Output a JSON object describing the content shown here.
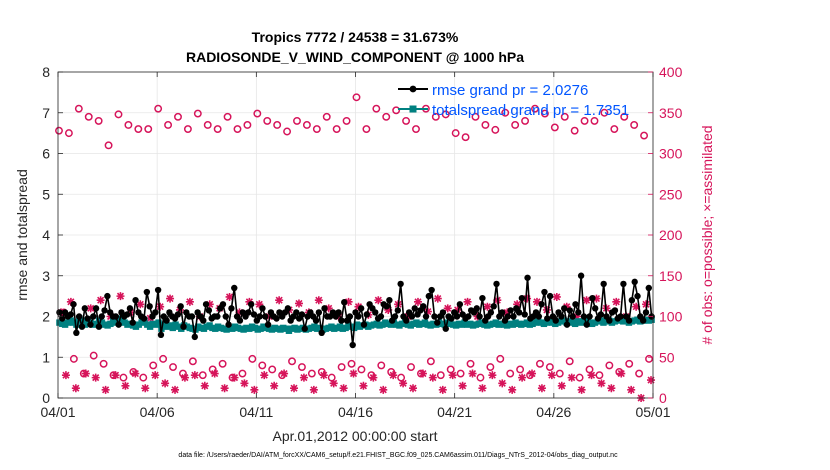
{
  "chart_data": {
    "type": "line",
    "title_line1": "Tropics 7772 / 24538 = 31.673%",
    "title_line2": "RADIOSONDE_V_WIND_COMPONENT @ 1000 hPa",
    "xlabel": "Apr.01,2012 00:00:00 start",
    "ylabel_left": "rmse and totalspread",
    "ylabel_right": "# of obs: o=possible; ×=assimilated",
    "footer": "data file: /Users/raeder/DAI/ATM_forcXX/CAM6_setup/f.e21.FHIST_BGC.f09_025.CAM6assim.011/Diags_NTrS_2012-04/obs_diag_output.nc",
    "x_unit": "day of month (Apr 2012, day 1.0 = 04/01 00Z)",
    "xlim": [
      1,
      31
    ],
    "ylim_left": [
      0,
      8
    ],
    "ylim_right": [
      0,
      400
    ],
    "x_ticks": [
      1,
      6,
      11,
      16,
      21,
      26,
      31
    ],
    "x_tick_labels": [
      "04/01",
      "04/06",
      "04/11",
      "04/16",
      "04/21",
      "04/26",
      "05/01"
    ],
    "y_ticks_left": [
      "0",
      "1",
      "2",
      "3",
      "4",
      "5",
      "6",
      "7",
      "8"
    ],
    "y_ticks_right": [
      "0",
      "50",
      "100",
      "150",
      "200",
      "250",
      "300",
      "350",
      "400"
    ],
    "colors": {
      "rmse": "#000000",
      "spread": "#008080",
      "obs": "#d6145a",
      "legend_text": "#0055ff"
    },
    "legend": [
      "rmse grand pr = 2.0276",
      "totalspread grand pr = 1.7351"
    ],
    "series": [
      {
        "name": "rmse",
        "axis": "left",
        "values": [
          2.1,
          1.95,
          2.1,
          2.0,
          2.05,
          2.3,
          1.6,
          2.0,
          1.75,
          2.2,
          1.95,
          1.8,
          2.0,
          2.2,
          1.75,
          2.0,
          2.15,
          2.5,
          2.1,
          2.0,
          2.0,
          1.8,
          2.1,
          2.0,
          2.05,
          2.2,
          1.85,
          2.4,
          2.1,
          2.0,
          1.95,
          2.6,
          2.25,
          2.0,
          2.1,
          2.65,
          1.55,
          2.0,
          1.9,
          2.1,
          2.0,
          1.95,
          2.05,
          2.25,
          1.75,
          2.1,
          2.0,
          2.0,
          1.5,
          2.1,
          2.0,
          1.9,
          2.3,
          2.15,
          1.95,
          2.0,
          2.0,
          2.2,
          2.3,
          2.0,
          1.8,
          2.2,
          2.7,
          2.0,
          1.9,
          2.1,
          2.0,
          2.1,
          2.3,
          2.05,
          1.9,
          2.0,
          2.2,
          2.0,
          1.8,
          2.1,
          2.0,
          1.95,
          2.1,
          2.0,
          2.1,
          2.2,
          1.9,
          2.0,
          2.1,
          1.95,
          2.05,
          1.7,
          2.0,
          2.1,
          2.0,
          1.9,
          2.1,
          1.6,
          2.2,
          2.0,
          2.0,
          2.1,
          2.0,
          2.1,
          1.9,
          2.35,
          1.9,
          2.0,
          1.3,
          2.1,
          2.0,
          2.2,
          1.8,
          2.05,
          2.3,
          2.2,
          2.1,
          1.95,
          2.0,
          2.3,
          2.25,
          2.4,
          1.9,
          2.0,
          2.15,
          2.8,
          2.0,
          1.9,
          2.1,
          2.0,
          2.2,
          2.05,
          2.15,
          2.25,
          2.0,
          2.5,
          2.65,
          2.0,
          1.85,
          2.0,
          2.1,
          1.7,
          2.0,
          1.95,
          2.1,
          2.0,
          2.3,
          2.05,
          1.95,
          2.0,
          2.15,
          2.1,
          2.2,
          2.0,
          2.45,
          1.9,
          2.0,
          2.1,
          2.25,
          2.8,
          2.0,
          2.1,
          1.9,
          2.0,
          2.15,
          2.0,
          2.2,
          2.1,
          2.45,
          2.05,
          2.95,
          1.95,
          2.0,
          2.1,
          2.0,
          2.3,
          2.6,
          1.95,
          2.5,
          2.0,
          1.9,
          2.1,
          2.0,
          2.2,
          1.8,
          2.15,
          2.0,
          2.3,
          2.1,
          3.0,
          2.0,
          1.8,
          2.0,
          2.45,
          2.2,
          1.95,
          2.05,
          2.8,
          2.0,
          1.9,
          2.1,
          2.15,
          1.95,
          2.0,
          2.8,
          2.0,
          1.9,
          2.4,
          2.85,
          2.5,
          2.0,
          1.9,
          2.1,
          2.7,
          2.0
        ]
      },
      {
        "name": "totalspread",
        "axis": "left",
        "values": [
          1.85,
          1.82,
          1.8,
          1.85,
          1.9,
          1.85,
          1.8,
          1.95,
          1.9,
          1.8,
          1.88,
          1.85,
          1.8,
          1.82,
          1.9,
          1.85,
          1.8,
          1.78,
          1.82,
          1.9,
          1.85,
          1.95,
          1.9,
          1.85,
          1.8,
          1.82,
          1.78,
          1.75,
          1.8,
          1.85,
          1.9,
          1.8,
          1.75,
          1.82,
          1.8,
          1.85,
          1.7,
          1.8,
          1.75,
          1.78,
          1.72,
          1.8,
          1.75,
          1.7,
          1.78,
          1.75,
          1.72,
          1.7,
          1.68,
          1.75,
          1.72,
          1.7,
          1.75,
          1.78,
          1.72,
          1.7,
          1.75,
          1.72,
          1.7,
          1.68,
          1.72,
          1.7,
          1.75,
          1.72,
          1.7,
          1.68,
          1.72,
          1.7,
          1.75,
          1.72,
          1.68,
          1.7,
          1.75,
          1.72,
          1.7,
          1.68,
          1.72,
          1.7,
          1.68,
          1.72,
          1.7,
          1.65,
          1.7,
          1.72,
          1.68,
          1.7,
          1.72,
          1.68,
          1.7,
          1.72,
          1.75,
          1.7,
          1.72,
          1.68,
          1.7,
          1.72,
          1.75,
          1.7,
          1.72,
          1.75,
          1.7,
          1.72,
          1.78,
          1.75,
          1.72,
          1.8,
          1.75,
          1.78,
          1.8,
          1.75,
          1.78,
          1.8,
          1.82,
          1.78,
          1.8,
          1.85,
          1.82,
          1.8,
          1.85,
          1.8,
          1.78,
          1.82,
          1.85,
          1.8,
          1.78,
          1.82,
          1.85,
          1.8,
          1.82,
          1.85,
          1.8,
          1.78,
          1.82,
          1.8,
          1.85,
          1.82,
          1.8,
          1.85,
          1.82,
          1.8,
          1.78,
          1.82,
          1.8,
          1.85,
          1.8,
          1.82,
          1.78,
          1.8,
          1.82,
          1.85,
          1.8,
          1.78,
          1.8,
          1.82,
          1.85,
          1.8,
          1.82,
          1.8,
          1.78,
          1.82,
          1.8,
          1.85,
          1.82,
          1.8,
          1.82,
          1.85,
          1.8,
          1.82,
          1.85,
          1.88,
          1.85,
          1.82,
          1.85,
          1.88,
          1.85,
          1.82,
          1.85,
          1.88,
          1.9,
          1.85,
          1.88,
          1.85,
          1.82,
          1.88,
          1.85,
          1.88,
          1.9,
          1.85,
          1.82,
          1.85,
          1.88,
          1.9,
          1.85,
          1.88,
          1.9,
          1.85,
          1.88,
          1.9,
          1.92,
          1.88,
          1.9,
          1.85,
          1.88,
          1.9,
          1.92,
          1.88,
          1.9,
          1.92,
          1.9,
          1.92
        ]
      },
      {
        "name": "obs_possible",
        "axis": "right",
        "x": [
          1.05,
          1.55,
          2.05,
          2.55,
          3.05,
          3.55,
          4.05,
          4.55,
          5.05,
          5.55,
          6.05,
          6.55,
          7.05,
          7.55,
          8.05,
          8.55,
          9.05,
          9.55,
          10.05,
          10.55,
          11.05,
          11.55,
          12.05,
          12.55,
          13.05,
          13.55,
          14.05,
          14.55,
          15.05,
          15.55,
          16.05,
          16.55,
          17.05,
          17.55,
          18.05,
          18.55,
          19.05,
          19.55,
          20.05,
          20.55,
          21.05,
          21.55,
          22.05,
          22.55,
          23.05,
          23.55,
          24.05,
          24.55,
          25.05,
          25.55,
          26.05,
          26.55,
          27.05,
          27.55,
          28.05,
          28.55,
          29.05,
          29.55,
          30.05,
          30.55,
          1.3,
          1.8,
          2.3,
          2.8,
          3.3,
          3.8,
          4.3,
          4.8,
          5.3,
          5.8,
          6.3,
          6.8,
          7.3,
          7.8,
          8.3,
          8.8,
          9.3,
          9.8,
          10.3,
          10.8,
          11.3,
          11.8,
          12.3,
          12.8,
          13.3,
          13.8,
          14.3,
          14.8,
          15.3,
          15.8,
          16.3,
          16.8,
          17.3,
          17.8,
          18.3,
          18.8,
          19.3,
          19.8,
          20.3,
          20.8,
          21.3,
          21.8,
          22.3,
          22.8,
          23.3,
          23.8,
          24.3,
          24.8,
          25.3,
          25.8,
          26.3,
          26.8,
          27.3,
          27.8,
          28.3,
          28.8,
          29.3,
          29.8,
          30.3,
          30.8
        ],
        "values": [
          328,
          325,
          355,
          345,
          340,
          310,
          348,
          335,
          330,
          330,
          355,
          335,
          345,
          330,
          349,
          335,
          330,
          345,
          330,
          335,
          349,
          340,
          335,
          327,
          340,
          335,
          330,
          345,
          330,
          340,
          369,
          330,
          355,
          345,
          353,
          340,
          330,
          355,
          345,
          348,
          325,
          320,
          345,
          335,
          329,
          350,
          335,
          340,
          355,
          349,
          332,
          345,
          328,
          340,
          340,
          350,
          330,
          345,
          335,
          322,
          105,
          48,
          30,
          52,
          42,
          28,
          25,
          32,
          25,
          40,
          48,
          38,
          30,
          45,
          28,
          35,
          42,
          25,
          30,
          48,
          40,
          35,
          28,
          45,
          38,
          30,
          32,
          25,
          38,
          42,
          35,
          28,
          40,
          32,
          25,
          38,
          30,
          45,
          28,
          35,
          30,
          42,
          25,
          38,
          48,
          30,
          35,
          28,
          42,
          38,
          30,
          45,
          25,
          35,
          28,
          40,
          32,
          42,
          30,
          48
        ]
      },
      {
        "name": "obs_assimilated",
        "axis": "right",
        "x": [
          1.15,
          1.65,
          2.15,
          2.65,
          3.15,
          3.65,
          4.15,
          4.65,
          5.15,
          5.65,
          6.15,
          6.65,
          7.15,
          7.65,
          8.15,
          8.65,
          9.15,
          9.65,
          10.15,
          10.65,
          11.15,
          11.65,
          12.15,
          12.65,
          13.15,
          13.65,
          14.15,
          14.65,
          15.15,
          15.65,
          16.15,
          16.65,
          17.15,
          17.65,
          18.15,
          18.65,
          19.15,
          19.65,
          20.15,
          20.65,
          21.15,
          21.65,
          22.15,
          22.65,
          23.15,
          23.65,
          24.15,
          24.65,
          25.15,
          25.65,
          26.15,
          26.65,
          27.15,
          27.65,
          28.15,
          28.65,
          29.15,
          29.65,
          30.15,
          30.65,
          1.4,
          1.9,
          2.4,
          2.9,
          3.4,
          3.9,
          4.4,
          4.9,
          5.4,
          5.9,
          6.4,
          6.9,
          7.4,
          7.9,
          8.4,
          8.9,
          9.4,
          9.9,
          10.4,
          10.9,
          11.4,
          11.9,
          12.4,
          12.9,
          13.4,
          13.9,
          14.4,
          14.9,
          15.4,
          15.9,
          16.4,
          16.9,
          17.4,
          17.9,
          18.4,
          18.9,
          19.4,
          19.9,
          20.4,
          20.9,
          21.4,
          21.9,
          22.4,
          22.9,
          23.4,
          23.9,
          24.4,
          24.9,
          25.4,
          25.9,
          26.4,
          26.9,
          27.4,
          27.9,
          28.4,
          28.9,
          29.4,
          29.9,
          30.4,
          30.9
        ],
        "values": [
          105,
          118,
          95,
          110,
          120,
          100,
          125,
          105,
          115,
          98,
          112,
          122,
          108,
          118,
          100,
          115,
          110,
          124,
          105,
          118,
          115,
          100,
          120,
          108,
          116,
          105,
          120,
          110,
          100,
          118,
          112,
          102,
          120,
          108,
          115,
          100,
          118,
          106,
          122,
          110,
          108,
          118,
          100,
          112,
          120,
          105,
          115,
          122,
          118,
          108,
          124,
          112,
          100,
          120,
          122,
          110,
          118,
          100,
          112,
          115,
          28,
          12,
          30,
          25,
          10,
          28,
          15,
          30,
          12,
          28,
          18,
          10,
          25,
          28,
          15,
          30,
          12,
          25,
          18,
          10,
          28,
          15,
          30,
          12,
          25,
          10,
          28,
          18,
          12,
          30,
          15,
          25,
          10,
          28,
          18,
          12,
          30,
          25,
          10,
          28,
          15,
          30,
          12,
          28,
          18,
          10,
          25,
          30,
          12,
          28,
          15,
          25,
          10,
          28,
          18,
          12,
          30,
          10,
          0,
          22
        ]
      }
    ]
  }
}
